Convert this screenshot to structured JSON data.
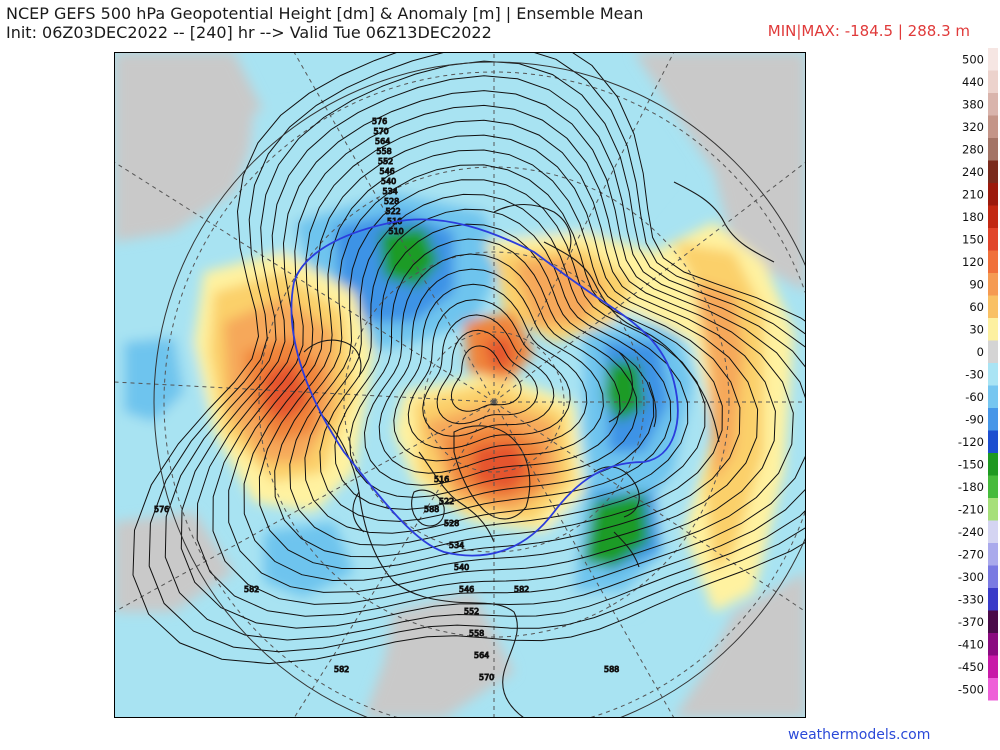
{
  "header": {
    "title_line1": "NCEP GEFS 500 hPa Geopotential Height [dm] & Anomaly [m] | Ensemble Mean",
    "title_line2": "Init: 06Z03DEC2022 -- [240] hr --> Valid Tue 06Z13DEC2022",
    "minmax": "MIN|MAX: -184.5 | 288.3 m"
  },
  "map": {
    "contour_labels": [
      "576",
      "570",
      "564",
      "558",
      "552",
      "546",
      "540",
      "534",
      "528",
      "522",
      "516",
      "510",
      "516",
      "522",
      "528",
      "534",
      "540",
      "546",
      "552",
      "558",
      "564",
      "570",
      "576",
      "582",
      "582",
      "588",
      "582",
      "588"
    ],
    "colors": {
      "land_grey": "#c9c9c9",
      "ocean_bg": "#ffffff",
      "neg30": "#a8e3f2",
      "neg60": "#6ec4ee",
      "neg90": "#3c93e6",
      "neg120": "#2266d8",
      "neg150": "#1e9b28",
      "neg180": "#3fbd3a",
      "pos30": "#fff2a0",
      "pos60": "#fbd06a",
      "pos90": "#f6a85a",
      "pos120": "#f0843a",
      "pos150": "#e5552e",
      "pos180": "#d03220"
    }
  },
  "legend": {
    "items": [
      {
        "label": "500",
        "color": "#f6e6e3"
      },
      {
        "label": "440",
        "color": "#ecd2cc"
      },
      {
        "label": "380",
        "color": "#d9b4ac"
      },
      {
        "label": "320",
        "color": "#c49588"
      },
      {
        "label": "280",
        "color": "#a47466"
      },
      {
        "label": "240",
        "color": "#7a2a1c"
      },
      {
        "label": "210",
        "color": "#9c1a0c"
      },
      {
        "label": "180",
        "color": "#c22812"
      },
      {
        "label": "150",
        "color": "#e1452a"
      },
      {
        "label": "120",
        "color": "#f0703a"
      },
      {
        "label": "90",
        "color": "#f59a52"
      },
      {
        "label": "60",
        "color": "#f9c064"
      },
      {
        "label": "30",
        "color": "#fdf0a0"
      },
      {
        "label": "0",
        "color": "#d4d4d4"
      },
      {
        "label": "-30",
        "color": "#a9e4f4"
      },
      {
        "label": "-60",
        "color": "#76c6f0"
      },
      {
        "label": "-90",
        "color": "#4697e8"
      },
      {
        "label": "-120",
        "color": "#1c4fd0"
      },
      {
        "label": "-150",
        "color": "#1e9922"
      },
      {
        "label": "-180",
        "color": "#46bb3c"
      },
      {
        "label": "-210",
        "color": "#a6e07a"
      },
      {
        "label": "-240",
        "color": "#d4d4f2"
      },
      {
        "label": "-270",
        "color": "#aaaaec"
      },
      {
        "label": "-300",
        "color": "#7a7ae2"
      },
      {
        "label": "-330",
        "color": "#3a3ac8"
      },
      {
        "label": "-370",
        "color": "#4a0a4a"
      },
      {
        "label": "-410",
        "color": "#8a0a80"
      },
      {
        "label": "-450",
        "color": "#c81aa8"
      },
      {
        "label": "-500",
        "color": "#ee60d8"
      }
    ]
  },
  "footer": {
    "credit": "weathermodels.com"
  }
}
